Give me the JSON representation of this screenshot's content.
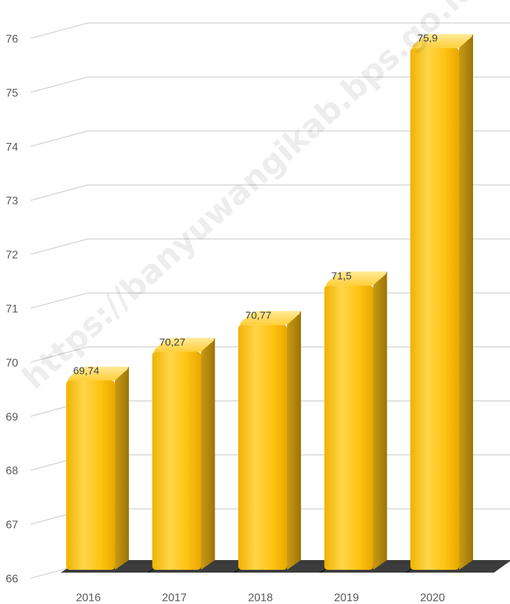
{
  "watermark": "https://banyuwangikab.bps.go.id",
  "chart_data": {
    "type": "bar",
    "categories": [
      "2016",
      "2017",
      "2018",
      "2019",
      "2020"
    ],
    "values": [
      69.74,
      70.27,
      70.77,
      71.5,
      75.9
    ],
    "data_labels": [
      "69,74",
      "70,27",
      "70,77",
      "71,5",
      "75,9"
    ],
    "y_ticks": [
      66,
      67,
      68,
      69,
      70,
      71,
      72,
      73,
      74,
      75,
      76
    ],
    "ylim": [
      66,
      77
    ],
    "grid": true,
    "legend": "none",
    "title": "",
    "xlabel": "",
    "ylabel": "",
    "colors": {
      "bar_front_top": "#FFD74A",
      "bar_front_mid": "#FFC20E",
      "bar_front_bottom": "#F2B705",
      "bar_side": "#B8860B",
      "bar_top": "#FFE27A",
      "grid": "#D9D9D9"
    }
  }
}
